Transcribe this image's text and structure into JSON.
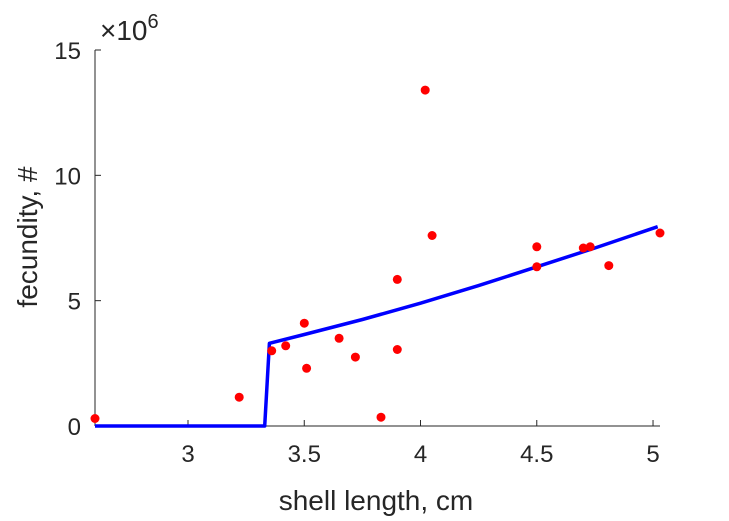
{
  "chart_data": {
    "type": "scatter",
    "xlabel": "shell length, cm",
    "ylabel": "fecundity, #",
    "xlim": [
      2.6,
      5.03
    ],
    "ylim": [
      0,
      15000000
    ],
    "xticks": [
      3,
      3.5,
      4,
      4.5,
      5
    ],
    "xtick_labels": [
      "3",
      "3.5",
      "4",
      "4.5",
      "5"
    ],
    "yticks": [
      0,
      5000000,
      10000000,
      15000000
    ],
    "ytick_labels": [
      "0",
      "5",
      "10",
      "15"
    ],
    "y_exponent": {
      "base": "×10",
      "power": "6"
    },
    "grid": false,
    "colors": {
      "points": "#ff0000",
      "fit": "#0000ff",
      "axis": "#262626"
    },
    "series": [
      {
        "kind": "points",
        "x": [
          2.6,
          3.22,
          3.36,
          3.42,
          3.5,
          3.51,
          3.65,
          3.72,
          3.83,
          3.9,
          3.9,
          4.02,
          4.05,
          4.5,
          4.5,
          4.7,
          4.73,
          4.81,
          5.03
        ],
        "y": [
          300000,
          1150000,
          3000000,
          3200000,
          4100000,
          2300000,
          3500000,
          2750000,
          350000,
          3050000,
          5850000,
          13400000,
          7600000,
          7150000,
          6350000,
          7100000,
          7150000,
          6400000,
          7700000
        ]
      },
      {
        "kind": "line",
        "x": [
          2.6,
          3.33,
          3.35,
          3.5,
          3.75,
          4.0,
          4.25,
          4.5,
          4.75,
          5.02
        ],
        "y": [
          0,
          0,
          3300000,
          3650000,
          4250000,
          4900000,
          5600000,
          6350000,
          7100000,
          7950000
        ]
      }
    ]
  }
}
